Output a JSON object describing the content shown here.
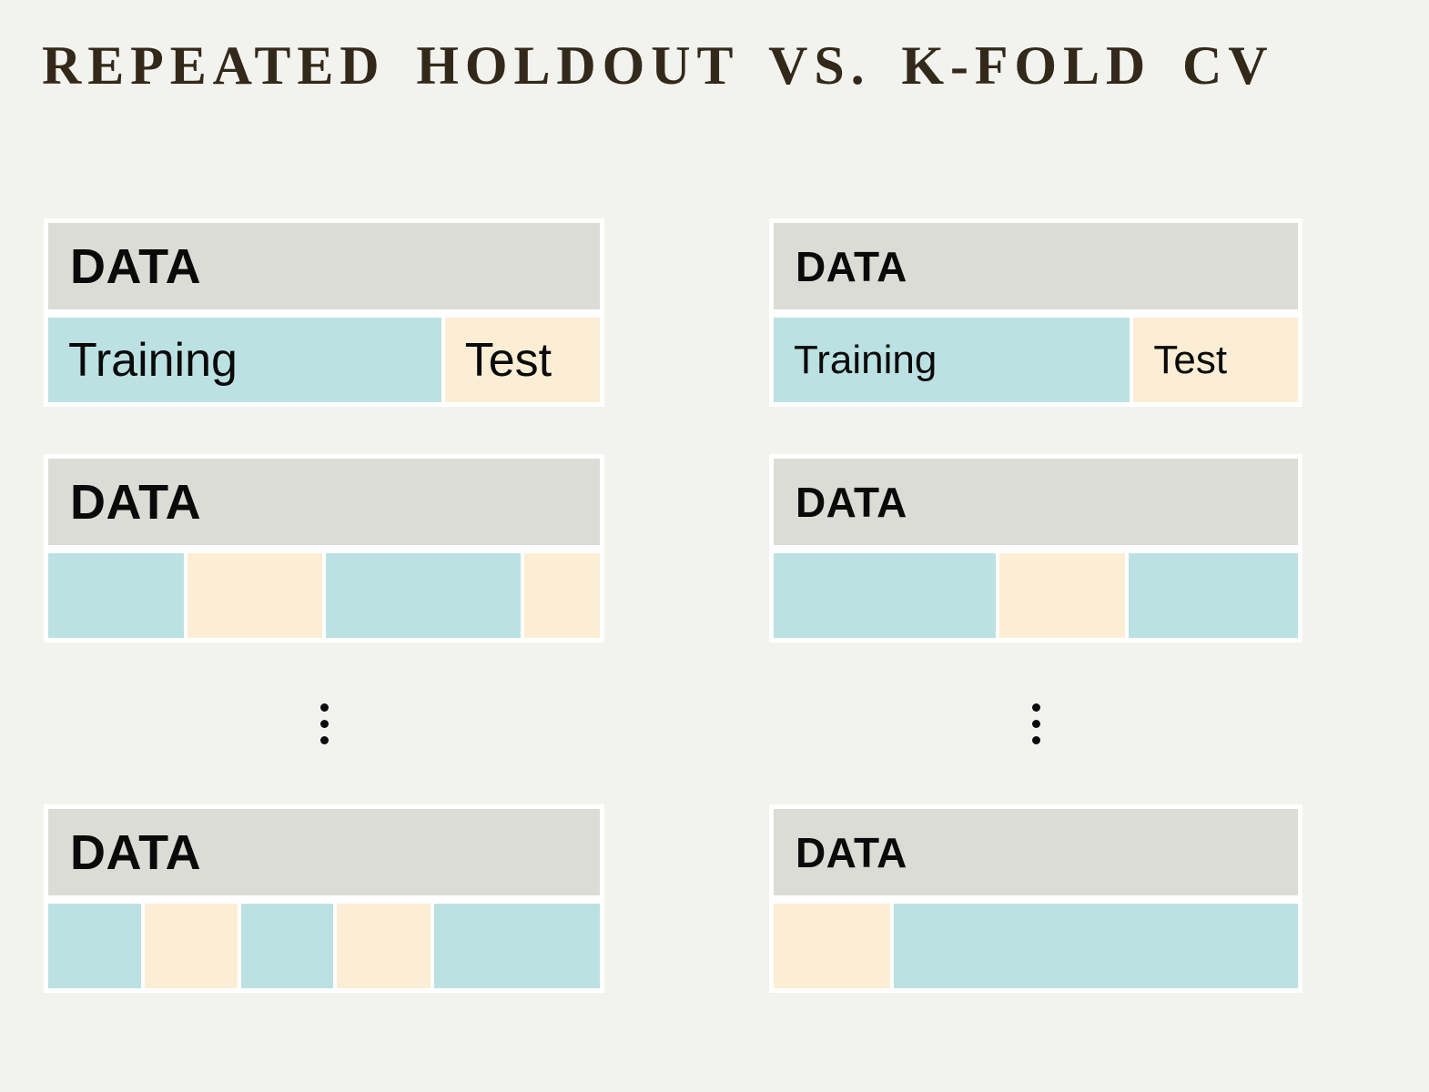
{
  "title": "REPEATED HOLDOUT VS. K-FOLD CV",
  "colors": {
    "background": "#f2f2ef",
    "card_frame": "#ffffff",
    "data_header": "#dcdcd6",
    "training_segment": "#bce1e2",
    "test_segment": "#fbeed4",
    "title_text": "#33291a",
    "label_text": "#0a0a0a"
  },
  "ellipsis": {
    "symbol": "⋮",
    "dot_count": 3
  },
  "columns": [
    {
      "id": "repeated-holdout",
      "blocks": [
        {
          "header_label": "DATA",
          "segments": [
            {
              "kind": "training",
              "label": "Training",
              "weight": 431
            },
            {
              "kind": "test",
              "label": "Test",
              "weight": 170
            }
          ]
        },
        {
          "header_label": "DATA",
          "segments": [
            {
              "kind": "training",
              "weight": 149
            },
            {
              "kind": "test",
              "weight": 148
            },
            {
              "kind": "training",
              "weight": 215
            },
            {
              "kind": "test",
              "weight": 83
            }
          ]
        },
        {
          "header_label": "DATA",
          "segments": [
            {
              "kind": "training",
              "weight": 103
            },
            {
              "kind": "test",
              "weight": 102
            },
            {
              "kind": "training",
              "weight": 102
            },
            {
              "kind": "test",
              "weight": 103
            },
            {
              "kind": "training",
              "weight": 183
            }
          ]
        }
      ]
    },
    {
      "id": "kfold-cv",
      "blocks": [
        {
          "header_label": "DATA",
          "segments": [
            {
              "kind": "training",
              "label": "Training",
              "weight": 390
            },
            {
              "kind": "test",
              "label": "Test",
              "weight": 180
            }
          ]
        },
        {
          "header_label": "DATA",
          "segments": [
            {
              "kind": "training",
              "weight": 244
            },
            {
              "kind": "test",
              "weight": 138
            },
            {
              "kind": "training",
              "weight": 186
            }
          ]
        },
        {
          "header_label": "DATA",
          "segments": [
            {
              "kind": "test",
              "weight": 128
            },
            {
              "kind": "training",
              "weight": 444
            }
          ]
        }
      ]
    }
  ]
}
